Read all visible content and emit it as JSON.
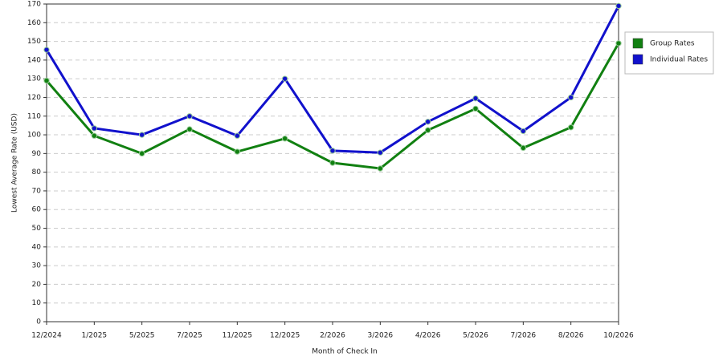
{
  "chart_data": {
    "type": "line",
    "x_label": "Month of Check In",
    "y_label": "Lowest Average Rate (USD)",
    "categories": [
      "12/2024",
      "1/2025",
      "5/2025",
      "7/2025",
      "11/2025",
      "12/2025",
      "2/2026",
      "3/2026",
      "4/2026",
      "5/2026",
      "7/2026",
      "8/2026",
      "10/2026"
    ],
    "series": [
      {
        "name": "Group Rates",
        "color": "#118011",
        "values": [
          129,
          99.5,
          90,
          103,
          91,
          98,
          85,
          82,
          102.5,
          114,
          93,
          104,
          149
        ]
      },
      {
        "name": "Individual Rates",
        "color": "#1111cc",
        "values": [
          145.5,
          103.5,
          100,
          110,
          99.5,
          130,
          91.5,
          90.5,
          107,
          119.5,
          102,
          120,
          169
        ]
      }
    ],
    "ylim": [
      0,
      170
    ],
    "yticks": [
      0,
      10,
      20,
      30,
      40,
      50,
      60,
      70,
      80,
      90,
      100,
      110,
      120,
      130,
      140,
      150,
      160,
      170
    ],
    "grid": true,
    "legend": "upper right"
  }
}
